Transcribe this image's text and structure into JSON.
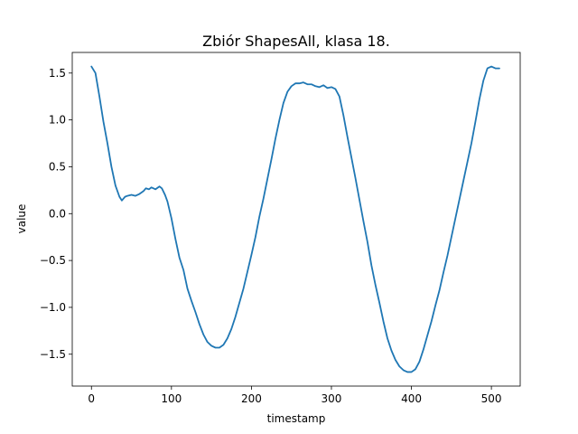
{
  "chart_data": {
    "type": "line",
    "title": "Zbiór ShapesAll, klasa 18.",
    "xlabel": "timestamp",
    "ylabel": "value",
    "xlim": [
      -24,
      536
    ],
    "ylim": [
      -1.84,
      1.72
    ],
    "xticks": [
      0,
      100,
      200,
      300,
      400,
      500
    ],
    "yticks": [
      -1.5,
      -1.0,
      -0.5,
      0.0,
      0.5,
      1.0,
      1.5
    ],
    "ytick_labels": [
      "−1.5",
      "−1.0",
      "−0.5",
      "0.0",
      "0.5",
      "1.0",
      "1.5"
    ],
    "grid": false,
    "line_color": "#1f77b4",
    "series": [
      {
        "x": [
          0,
          5,
          10,
          15,
          20,
          25,
          30,
          35,
          38,
          40,
          42,
          45,
          50,
          55,
          60,
          65,
          68,
          72,
          75,
          80,
          85,
          88,
          92,
          95,
          100,
          105,
          110,
          115,
          120,
          125,
          130,
          135,
          140,
          145,
          150,
          155,
          160,
          165,
          170,
          175,
          180,
          185,
          190,
          195,
          200,
          205,
          210,
          215,
          220,
          225,
          230,
          235,
          240,
          245,
          250,
          255,
          260,
          265,
          270,
          275,
          280,
          285,
          290,
          295,
          300,
          305,
          310,
          315,
          320,
          325,
          330,
          335,
          340,
          345,
          350,
          355,
          360,
          365,
          370,
          375,
          380,
          385,
          390,
          395,
          400,
          405,
          410,
          415,
          420,
          425,
          430,
          435,
          440,
          445,
          450,
          455,
          460,
          465,
          470,
          475,
          480,
          485,
          490,
          495,
          500,
          505,
          508,
          510
        ],
        "y": [
          1.57,
          1.5,
          1.25,
          0.98,
          0.75,
          0.5,
          0.3,
          0.18,
          0.14,
          0.16,
          0.18,
          0.19,
          0.2,
          0.19,
          0.21,
          0.24,
          0.27,
          0.26,
          0.28,
          0.26,
          0.29,
          0.27,
          0.2,
          0.13,
          -0.05,
          -0.27,
          -0.47,
          -0.6,
          -0.8,
          -0.93,
          -1.05,
          -1.18,
          -1.29,
          -1.37,
          -1.41,
          -1.43,
          -1.43,
          -1.4,
          -1.33,
          -1.23,
          -1.1,
          -0.95,
          -0.8,
          -0.62,
          -0.44,
          -0.25,
          -0.03,
          0.16,
          0.37,
          0.58,
          0.8,
          1.0,
          1.18,
          1.3,
          1.36,
          1.39,
          1.39,
          1.4,
          1.38,
          1.38,
          1.36,
          1.35,
          1.37,
          1.34,
          1.35,
          1.33,
          1.25,
          1.05,
          0.82,
          0.6,
          0.38,
          0.15,
          -0.08,
          -0.3,
          -0.55,
          -0.76,
          -0.95,
          -1.15,
          -1.33,
          -1.46,
          -1.56,
          -1.63,
          -1.67,
          -1.69,
          -1.69,
          -1.66,
          -1.58,
          -1.45,
          -1.3,
          -1.15,
          -0.98,
          -0.82,
          -0.63,
          -0.45,
          -0.25,
          -0.05,
          0.15,
          0.35,
          0.55,
          0.75,
          0.98,
          1.22,
          1.42,
          1.55,
          1.57,
          1.55,
          1.55,
          1.55
        ]
      }
    ]
  }
}
